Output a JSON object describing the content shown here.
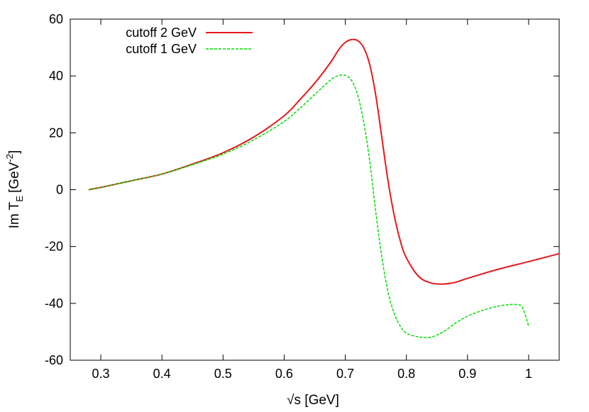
{
  "chart_data": {
    "type": "line",
    "title": "",
    "xlabel": "√s [GeV]",
    "ylabel": "Im T",
    "ylabel_sub": "E",
    "ylabel_unit": "[GeV",
    "ylabel_sup": "-2",
    "ylabel_end": "]",
    "xlim": [
      0.25,
      1.05
    ],
    "ylim": [
      -60,
      60
    ],
    "x_ticks": [
      0.3,
      0.4,
      0.5,
      0.6,
      0.7,
      0.8,
      0.9,
      1.0
    ],
    "x_tick_labels": [
      "0.3",
      "0.4",
      "0.5",
      "0.6",
      "0.7",
      "0.8",
      "0.9",
      "1"
    ],
    "y_ticks": [
      -60,
      -40,
      -20,
      0,
      20,
      40,
      60
    ],
    "y_tick_labels": [
      "-60",
      "-40",
      "-20",
      "0",
      "20",
      "40",
      "60"
    ],
    "grid": false,
    "legend_position": "top-left",
    "series": [
      {
        "name": "cutoff 2 GeV",
        "color": "#e41a1c",
        "style": "solid",
        "x": [
          0.28,
          0.3,
          0.33,
          0.36,
          0.4,
          0.45,
          0.5,
          0.55,
          0.6,
          0.625,
          0.65,
          0.675,
          0.69,
          0.7,
          0.71,
          0.72,
          0.73,
          0.74,
          0.75,
          0.76,
          0.77,
          0.78,
          0.79,
          0.8,
          0.82,
          0.84,
          0.86,
          0.88,
          0.9,
          0.95,
          1.0,
          1.05
        ],
        "y": [
          0,
          0.8,
          2.2,
          3.6,
          5.5,
          9.0,
          13.0,
          18.5,
          26.0,
          31.5,
          37.5,
          44.5,
          49.5,
          51.8,
          52.8,
          52.5,
          50.0,
          44.0,
          33.0,
          18.0,
          3.0,
          -9.0,
          -18.0,
          -24.0,
          -30.5,
          -32.8,
          -33.2,
          -32.6,
          -31.2,
          -28.0,
          -25.3,
          -22.5
        ]
      },
      {
        "name": "cutoff 1 GeV",
        "color": "#00dd00",
        "style": "dashed",
        "x": [
          0.28,
          0.3,
          0.33,
          0.36,
          0.4,
          0.45,
          0.5,
          0.55,
          0.6,
          0.625,
          0.65,
          0.67,
          0.68,
          0.69,
          0.7,
          0.71,
          0.72,
          0.73,
          0.74,
          0.75,
          0.76,
          0.77,
          0.78,
          0.79,
          0.8,
          0.82,
          0.84,
          0.86,
          0.88,
          0.9,
          0.92,
          0.94,
          0.96,
          0.98,
          0.99,
          1.0
        ],
        "y": [
          0,
          0.8,
          2.2,
          3.6,
          5.5,
          8.8,
          12.5,
          17.5,
          24.0,
          28.5,
          33.5,
          37.5,
          39.3,
          40.2,
          40.2,
          38.5,
          33.5,
          24.0,
          10.0,
          -8.0,
          -24.0,
          -36.0,
          -43.5,
          -48.0,
          -50.5,
          -51.8,
          -51.9,
          -50.0,
          -47.0,
          -44.5,
          -42.8,
          -41.5,
          -40.6,
          -40.4,
          -41.5,
          -48.0
        ]
      }
    ]
  }
}
